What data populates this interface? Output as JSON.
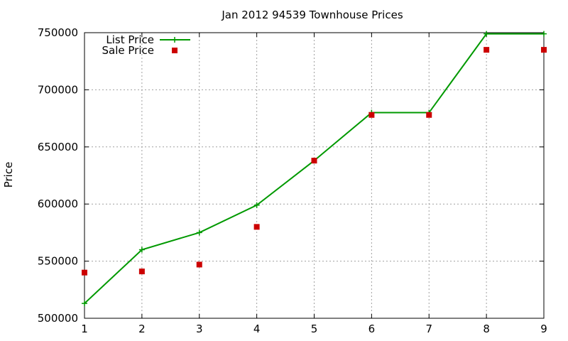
{
  "chart_data": {
    "type": "line",
    "title": "Jan 2012 94539 Townhouse Prices",
    "xlabel": "",
    "ylabel": "Price",
    "xlim": [
      1,
      9
    ],
    "ylim": [
      500000,
      750000
    ],
    "x_ticks": [
      "1",
      "2",
      "3",
      "4",
      "5",
      "6",
      "7",
      "8",
      "9"
    ],
    "y_ticks": [
      "500000",
      "550000",
      "600000",
      "650000",
      "700000",
      "750000"
    ],
    "grid": true,
    "legend_position": "top-left",
    "series": [
      {
        "name": "List Price",
        "style": "linespoints",
        "color": "#009900",
        "marker": "plus",
        "x": [
          1,
          2,
          3,
          4,
          5,
          6,
          7,
          8,
          9
        ],
        "y": [
          513000,
          560000,
          575000,
          599000,
          638000,
          680000,
          680000,
          749000,
          749000
        ]
      },
      {
        "name": "Sale Price",
        "style": "points",
        "color": "#cc0000",
        "marker": "square",
        "x": [
          1,
          2,
          3,
          4,
          5,
          6,
          7,
          8,
          9
        ],
        "y": [
          540000,
          541000,
          547000,
          580000,
          638000,
          678000,
          678000,
          735000,
          735000
        ]
      }
    ]
  }
}
